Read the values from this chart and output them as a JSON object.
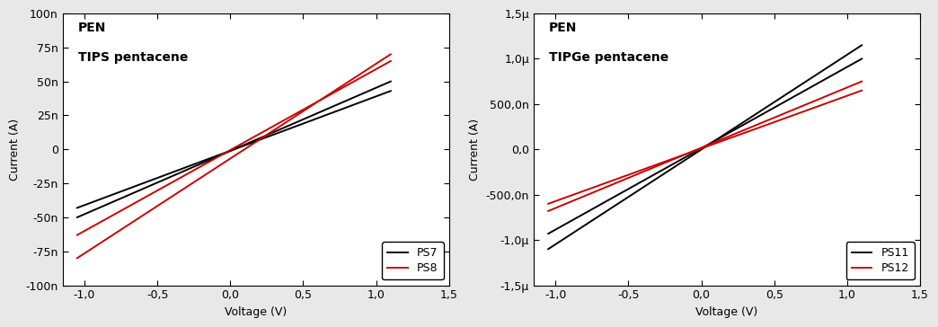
{
  "left_plot": {
    "title_line1": "PEN",
    "title_line2": "TIPS pentacene",
    "xlabel": "Voltage (V)",
    "ylabel": "Current (A)",
    "xlim": [
      -1.15,
      1.5
    ],
    "ylim": [
      -1e-07,
      1e-07
    ],
    "xticks": [
      -1.0,
      -0.5,
      0.0,
      0.5,
      1.0,
      1.5
    ],
    "yticks": [
      -1e-07,
      -7.5e-08,
      -5e-08,
      -2.5e-08,
      0,
      2.5e-08,
      5e-08,
      7.5e-08,
      1e-07
    ],
    "ytick_labels": [
      "-100n",
      "-75n",
      "-50n",
      "-25n",
      "0",
      "25n",
      "50n",
      "75n",
      "100n"
    ],
    "xtick_labels": [
      "-1,0",
      "-0,5",
      "0,0",
      "0,5",
      "1,0",
      "1,5"
    ],
    "series": [
      {
        "label": "PS7",
        "color": "#000000",
        "lines": [
          {
            "x": [
              -1.05,
              1.1
            ],
            "y": [
              -5e-08,
              5e-08
            ]
          },
          {
            "x": [
              -1.05,
              1.1
            ],
            "y": [
              -4.3e-08,
              4.3e-08
            ]
          }
        ]
      },
      {
        "label": "PS8",
        "color": "#cc0000",
        "lines": [
          {
            "x": [
              -1.05,
              1.1
            ],
            "y": [
              -8e-08,
              7e-08
            ]
          },
          {
            "x": [
              -1.05,
              1.1
            ],
            "y": [
              -6.3e-08,
              6.5e-08
            ]
          }
        ]
      }
    ],
    "legend_loc": "lower right"
  },
  "right_plot": {
    "title_line1": "PEN",
    "title_line2": "TIPGe pentacene",
    "xlabel": "Voltage (V)",
    "ylabel": "Current (A)",
    "xlim": [
      -1.15,
      1.5
    ],
    "ylim": [
      -1.5e-06,
      1.5e-06
    ],
    "xticks": [
      -1.0,
      -0.5,
      0.0,
      0.5,
      1.0,
      1.5
    ],
    "yticks": [
      -1.5e-06,
      -1e-06,
      -5e-07,
      0,
      5e-07,
      1e-06,
      1.5e-06
    ],
    "ytick_labels": [
      "-1,5μ",
      "-1,0μ",
      "-500,0n",
      "0,0",
      "500,0n",
      "1,0μ",
      "1,5μ"
    ],
    "xtick_labels": [
      "-1,0",
      "-0,5",
      "0,0",
      "0,5",
      "1,0",
      "1,5"
    ],
    "series": [
      {
        "label": "PS11",
        "color": "#000000",
        "lines": [
          {
            "x": [
              -1.05,
              1.1
            ],
            "y": [
              -1.1e-06,
              1.15e-06
            ]
          },
          {
            "x": [
              -1.05,
              1.1
            ],
            "y": [
              -9.3e-07,
              1e-06
            ]
          }
        ]
      },
      {
        "label": "PS12",
        "color": "#cc0000",
        "lines": [
          {
            "x": [
              -1.05,
              1.1
            ],
            "y": [
              -6.8e-07,
              7.5e-07
            ]
          },
          {
            "x": [
              -1.05,
              1.1
            ],
            "y": [
              -6e-07,
              6.5e-07
            ]
          }
        ]
      }
    ],
    "legend_loc": "lower right"
  },
  "figure_bg_color": "#e8e8e8",
  "plot_bg_color": "#ffffff",
  "font_family": "DejaVu Sans",
  "font_size": 9,
  "title_font_size": 10,
  "label_font_size": 9,
  "line_width": 1.4
}
